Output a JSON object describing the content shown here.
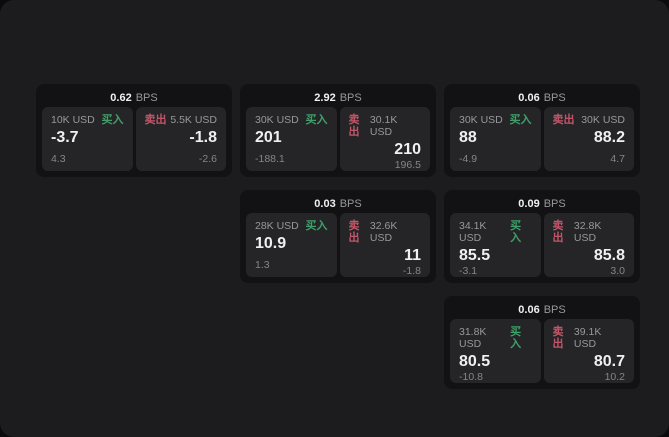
{
  "labels": {
    "bps_suffix": "BPS",
    "buy": "买入",
    "sell": "卖出"
  },
  "colors": {
    "page_bg": "#1c1c1e",
    "card_bg": "#121214",
    "panel_bg": "#252528",
    "value_text": "#f0f0f1",
    "muted_text": "#98989c",
    "sub_text": "#85858a",
    "buy_color": "#3fa06a",
    "sell_color": "#c25668"
  },
  "cards": [
    {
      "row": 1,
      "col": 1,
      "bps": "0.62",
      "buy": {
        "amount": "10K USD",
        "value": "-3.7",
        "sub": "4.3"
      },
      "sell": {
        "amount": "5.5K USD",
        "value": "-1.8",
        "sub": "-2.6"
      }
    },
    {
      "row": 1,
      "col": 2,
      "bps": "2.92",
      "buy": {
        "amount": "30K USD",
        "value": "201",
        "sub": "-188.1"
      },
      "sell": {
        "amount": "30.1K USD",
        "value": "210",
        "sub": "196.5"
      }
    },
    {
      "row": 1,
      "col": 3,
      "bps": "0.06",
      "buy": {
        "amount": "30K USD",
        "value": "88",
        "sub": "-4.9"
      },
      "sell": {
        "amount": "30K USD",
        "value": "88.2",
        "sub": "4.7"
      }
    },
    {
      "row": 2,
      "col": 2,
      "bps": "0.03",
      "buy": {
        "amount": "28K USD",
        "value": "10.9",
        "sub": "1.3"
      },
      "sell": {
        "amount": "32.6K USD",
        "value": "11",
        "sub": "-1.8"
      }
    },
    {
      "row": 2,
      "col": 3,
      "bps": "0.09",
      "buy": {
        "amount": "34.1K USD",
        "value": "85.5",
        "sub": "-3.1"
      },
      "sell": {
        "amount": "32.8K USD",
        "value": "85.8",
        "sub": "3.0"
      }
    },
    {
      "row": 3,
      "col": 3,
      "bps": "0.06",
      "buy": {
        "amount": "31.8K USD",
        "value": "80.5",
        "sub": "-10.8"
      },
      "sell": {
        "amount": "39.1K USD",
        "value": "80.7",
        "sub": "10.2"
      }
    }
  ]
}
